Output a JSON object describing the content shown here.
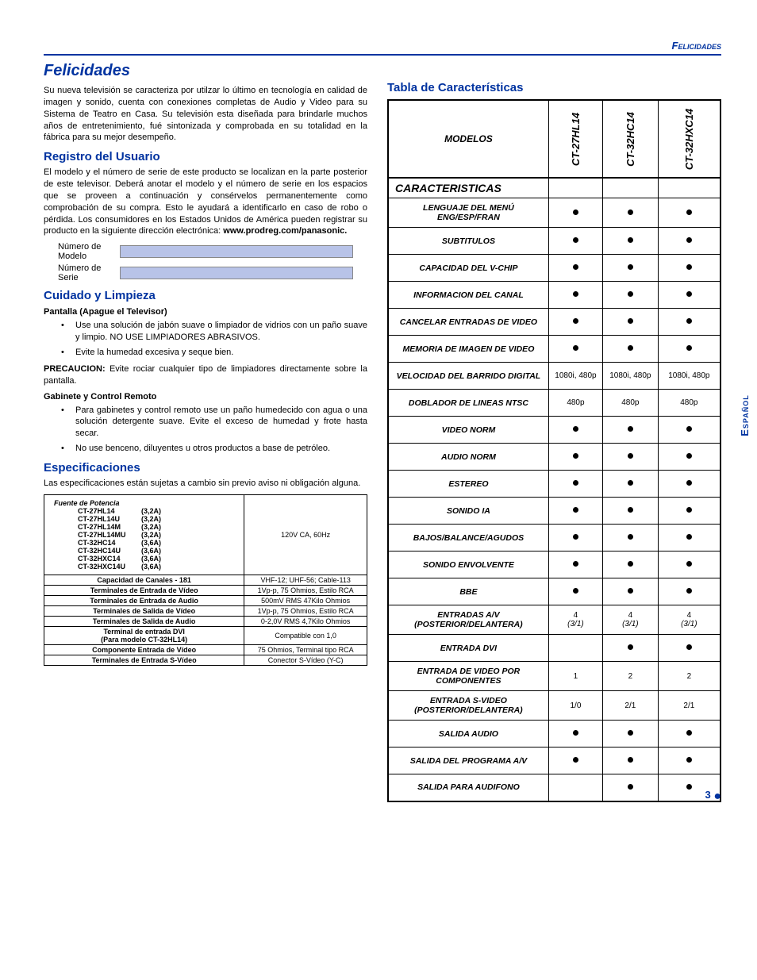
{
  "header_small": "Felicidades",
  "main_title": "Felicidades",
  "intro": "Su nueva televisión se caracteriza por utilzar lo último en tecnología en calidad de imagen y sonido, cuenta con conexiones completas de Audio y Video para su Sistema de Teatro en Casa. Su televisión esta diseñada para brindarle muchos años de entretenimiento, fué sintonizada y comprobada en su totalidad en la fábrica para su mejor desempeño.",
  "reg_title": "Registro del Usuario",
  "reg_body": "El modelo y el número de serie de este producto se localizan en la parte posterior de este televisor. Deberá anotar el modelo y el número de serie en los espacios que se proveen a continuación y consérvelos permanentemente como comprobación de su compra. Esto le ayudará a identificarlo en caso de robo o pérdida. Los consumidores en los Estados Unidos de América pueden registrar su producto en la siguiente dirección electrónica:",
  "reg_url": "www.prodreg.com/panasonic.",
  "field_model": "Número de Modelo",
  "field_serial": "Número de Serie",
  "care_title": "Cuidado y Limpieza",
  "care_sub1": "Pantalla (Apague el Televisor)",
  "care_b1": "Use una solución de jabón suave o limpiador de vidrios con un paño suave y limpio. NO USE LIMPIADORES ABRASIVOS.",
  "care_b2": "Evite la humedad excesiva y seque bien.",
  "precaution_label": "PRECAUCION:",
  "precaution_text": " Evite rociar cualquier tipo de limpiadores directamente sobre la pantalla.",
  "care_sub2": "Gabinete y Control Remoto",
  "care_b3": "Para gabinetes y control remoto use un paño humedecido con agua o una solución detergente suave. Evite el exceso de humedad y frote hasta secar.",
  "care_b4": "No use benceno, diluyentes u otros productos a base de petróleo.",
  "spec_title": "Especificaciones",
  "spec_body": "Las especificaciones están sujetas a cambio sin previo aviso ni obligación alguna.",
  "power_header": "Fuente de Potencia",
  "power_rows": [
    [
      "CT-27HL14",
      "(3,2A)"
    ],
    [
      "CT-27HL14U",
      "(3,2A)"
    ],
    [
      "CT-27HL14M",
      "(3,2A)"
    ],
    [
      "CT-27HL14MU",
      "(3,2A)"
    ],
    [
      "CT-32HC14",
      "(3,6A)"
    ],
    [
      "CT-32HC14U",
      "(3,6A)"
    ],
    [
      "CT-32HXC14",
      "(3,6A)"
    ],
    [
      "CT-32HXC14U",
      "(3,6A)"
    ]
  ],
  "power_val": "120V CA, 60Hz",
  "spec_rows": [
    [
      "Capacidad de Canales - 181",
      "VHF-12; UHF-56; Cable-113"
    ],
    [
      "Terminales de Entrada de Vídeo",
      "1Vp-p, 75 Ohmios, Estilo RCA"
    ],
    [
      "Terminales de Entrada de Audio",
      "500mV RMS 47Kilo Ohmios"
    ],
    [
      "Terminales de Salida de Vídeo",
      "1Vp-p, 75 Ohmios, Estilo RCA"
    ],
    [
      "Terminales de Salida de Audio",
      "0-2,0V RMS 4,7Kilo Ohmios"
    ],
    [
      "Terminal de entrada DVI\n(Para modelo CT-32HL14)",
      "Compatible con 1,0"
    ],
    [
      "Componente Entrada de Vídeo",
      "75 Ohmios, Terminal tipo RCA"
    ],
    [
      "Terminales de Entrada S-Vídeo",
      "Conector S-Vídeo (Y-C)"
    ]
  ],
  "feat_title": "Tabla  de Características",
  "models_label": "MODELOS",
  "model_cols": [
    "CT-27HL14",
    "CT-32HC14",
    "CT-32HXC14"
  ],
  "section_label": "CARACTERISTICAS",
  "features": [
    {
      "l": "LENGUAJE DEL MENÚ ENG/ESP/FRAN",
      "v": [
        "•",
        "•",
        "•"
      ]
    },
    {
      "l": "SUBTITULOS",
      "v": [
        "•",
        "•",
        "•"
      ]
    },
    {
      "l": "CAPACIDAD DEL V-CHIP",
      "v": [
        "•",
        "•",
        "•"
      ]
    },
    {
      "l": "INFORMACION DEL CANAL",
      "v": [
        "•",
        "•",
        "•"
      ]
    },
    {
      "l": "CANCELAR ENTRADAS DE VIDEO",
      "v": [
        "•",
        "•",
        "•"
      ]
    },
    {
      "l": "MEMORIA DE IMAGEN DE VIDEO",
      "v": [
        "•",
        "•",
        "•"
      ]
    },
    {
      "l": "VELOCIDAD DEL BARRIDO DIGITAL",
      "v": [
        "1080i, 480p",
        "1080i, 480p",
        "1080i, 480p"
      ]
    },
    {
      "l": "DOBLADOR DE LINEAS NTSC",
      "v": [
        "480p",
        "480p",
        "480p"
      ]
    },
    {
      "l": "VIDEO NORM",
      "v": [
        "•",
        "•",
        "•"
      ]
    },
    {
      "l": "AUDIO NORM",
      "v": [
        "•",
        "•",
        "•"
      ]
    },
    {
      "l": "ESTEREO",
      "v": [
        "•",
        "•",
        "•"
      ]
    },
    {
      "l": "SONIDO IA",
      "v": [
        "•",
        "•",
        "•"
      ]
    },
    {
      "l": "BAJOS/BALANCE/AGUDOS",
      "v": [
        "•",
        "•",
        "•"
      ]
    },
    {
      "l": "SONIDO ENVOLVENTE",
      "v": [
        "•",
        "•",
        "•"
      ]
    },
    {
      "l": "BBE",
      "v": [
        "•",
        "•",
        "•"
      ]
    },
    {
      "l": "ENTRADAS  A/V (POSTERIOR/DELANTERA)",
      "v": [
        "4",
        "4",
        "4"
      ],
      "sub": [
        "(3/1)",
        "(3/1)",
        "(3/1)"
      ]
    },
    {
      "l": "ENTRADA DVI",
      "v": [
        "",
        "•",
        "•"
      ]
    },
    {
      "l": "ENTRADA DE VIDEO POR COMPONENTES",
      "v": [
        "1",
        "2",
        "2"
      ]
    },
    {
      "l": "ENTRADA S-VIDEO (POSTERIOR/DELANTERA)",
      "v": [
        "1/0",
        "2/1",
        "2/1"
      ]
    },
    {
      "l": "SALIDA AUDIO",
      "v": [
        "•",
        "•",
        "•"
      ]
    },
    {
      "l": "SALIDA DEL PROGRAMA A/V",
      "v": [
        "•",
        "•",
        "•"
      ]
    },
    {
      "l": "SALIDA PARA AUDIFONO",
      "v": [
        "",
        "•",
        "•"
      ]
    }
  ],
  "side_tab": "Español",
  "page_num": "3"
}
